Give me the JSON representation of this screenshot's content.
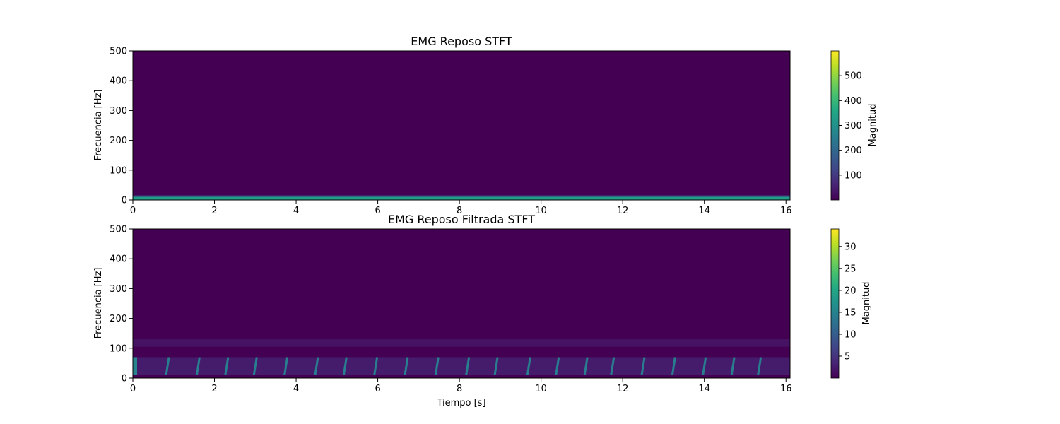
{
  "chart_data": [
    {
      "type": "heatmap",
      "title": "EMG Reposo STFT",
      "xlabel": "",
      "ylabel": "Frecuencia [Hz]",
      "xlim": [
        0,
        16.1
      ],
      "ylim": [
        0,
        500
      ],
      "xticks": [
        "0",
        "2",
        "4",
        "6",
        "8",
        "10",
        "12",
        "14",
        "16"
      ],
      "yticks": [
        "0",
        "100",
        "200",
        "300",
        "400",
        "500"
      ],
      "colormap": "viridis",
      "colorbar": {
        "label": "Magnitud",
        "min": 0,
        "max": 600,
        "ticks": [
          "100",
          "200",
          "300",
          "400",
          "500"
        ]
      },
      "features": [
        {
          "f_min": 0,
          "f_max": 15,
          "magnitude": 330
        },
        {
          "f_min": 15,
          "f_max": 500,
          "magnitude": 2
        }
      ]
    },
    {
      "type": "heatmap",
      "title": "EMG Reposo Filtrada STFT",
      "xlabel": "Tiempo [s]",
      "ylabel": "Frecuencia [Hz]",
      "xlim": [
        0,
        16.1
      ],
      "ylim": [
        0,
        500
      ],
      "xticks": [
        "0",
        "2",
        "4",
        "6",
        "8",
        "10",
        "12",
        "14",
        "16"
      ],
      "yticks": [
        "0",
        "100",
        "200",
        "300",
        "400",
        "500"
      ],
      "colormap": "viridis",
      "colorbar": {
        "label": "Magnitud",
        "min": 0,
        "max": 34,
        "ticks": [
          "5",
          "10",
          "15",
          "20",
          "25",
          "30"
        ]
      },
      "bands": [
        {
          "f_min": 10,
          "f_max": 70,
          "magnitude": 5
        },
        {
          "f_min": 105,
          "f_max": 130,
          "magnitude": 3
        }
      ],
      "pulse_times": [
        0.85,
        1.6,
        2.3,
        3.0,
        3.75,
        4.5,
        5.2,
        5.95,
        6.7,
        7.45,
        8.2,
        8.9,
        9.7,
        10.4,
        11.1,
        11.75,
        12.5,
        13.25,
        14.0,
        14.7,
        15.35
      ]
    }
  ]
}
